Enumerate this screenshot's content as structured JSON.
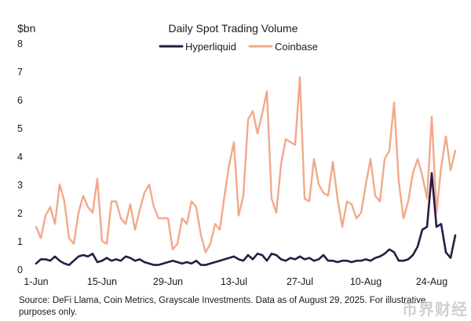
{
  "chart_data": {
    "type": "line",
    "title": "Daily Spot Trading Volume",
    "ylabel": "$bn",
    "xlabel": "",
    "ylim": [
      0,
      8
    ],
    "yticks": [
      0,
      1,
      2,
      3,
      4,
      5,
      6,
      7,
      8
    ],
    "x_tick_labels": [
      {
        "label": "1-Jun",
        "index": 0
      },
      {
        "label": "15-Jun",
        "index": 14
      },
      {
        "label": "29-Jun",
        "index": 28
      },
      {
        "label": "13-Jul",
        "index": 42
      },
      {
        "label": "27-Jul",
        "index": 56
      },
      {
        "label": "10-Aug",
        "index": 70
      },
      {
        "label": "24-Aug",
        "index": 84
      }
    ],
    "grid": false,
    "legend_position": "top-center",
    "series": [
      {
        "name": "Hyperliquid",
        "color": "#2b1a45",
        "values": [
          0.2,
          0.35,
          0.35,
          0.3,
          0.45,
          0.3,
          0.2,
          0.15,
          0.3,
          0.45,
          0.5,
          0.45,
          0.55,
          0.25,
          0.3,
          0.4,
          0.3,
          0.35,
          0.3,
          0.45,
          0.4,
          0.3,
          0.35,
          0.25,
          0.2,
          0.15,
          0.15,
          0.2,
          0.25,
          0.3,
          0.25,
          0.2,
          0.25,
          0.2,
          0.3,
          0.15,
          0.15,
          0.2,
          0.25,
          0.3,
          0.35,
          0.4,
          0.45,
          0.35,
          0.3,
          0.5,
          0.35,
          0.55,
          0.5,
          0.3,
          0.55,
          0.5,
          0.35,
          0.3,
          0.4,
          0.35,
          0.45,
          0.35,
          0.4,
          0.3,
          0.35,
          0.5,
          0.3,
          0.3,
          0.25,
          0.3,
          0.3,
          0.25,
          0.3,
          0.3,
          0.35,
          0.3,
          0.4,
          0.45,
          0.55,
          0.7,
          0.6,
          0.3,
          0.3,
          0.35,
          0.5,
          0.8,
          1.4,
          1.5,
          3.4,
          1.5,
          1.6,
          0.6,
          0.4,
          1.2
        ]
      },
      {
        "name": "Coinbase",
        "color": "#f2a98a",
        "values": [
          1.5,
          1.1,
          1.9,
          2.2,
          1.6,
          3.0,
          2.4,
          1.1,
          0.9,
          2.0,
          2.6,
          2.2,
          2.0,
          3.2,
          1.0,
          0.9,
          2.4,
          2.4,
          1.8,
          1.6,
          2.3,
          1.4,
          2.1,
          2.7,
          3.0,
          2.2,
          1.8,
          1.8,
          1.8,
          0.7,
          0.9,
          1.8,
          1.6,
          2.4,
          2.2,
          1.2,
          0.6,
          0.9,
          1.6,
          1.4,
          2.6,
          3.7,
          4.5,
          1.9,
          2.6,
          5.3,
          5.6,
          4.8,
          5.5,
          6.3,
          2.5,
          2.0,
          3.7,
          4.6,
          4.5,
          4.4,
          6.8,
          2.5,
          2.4,
          3.9,
          3.0,
          2.7,
          2.6,
          3.8,
          2.5,
          1.5,
          2.4,
          2.3,
          1.8,
          2.0,
          3.0,
          3.9,
          2.6,
          2.4,
          3.9,
          4.2,
          5.9,
          3.1,
          1.8,
          2.4,
          3.4,
          3.9,
          3.3,
          2.5,
          5.4,
          2.0,
          3.6,
          4.7,
          3.5,
          4.2
        ]
      }
    ]
  },
  "footnote": "Source: DeFi Llama, Coin Metrics, Grayscale Investments. Data as of August 29, 2025. For illustrative purposes only.",
  "watermark": "币界财经"
}
